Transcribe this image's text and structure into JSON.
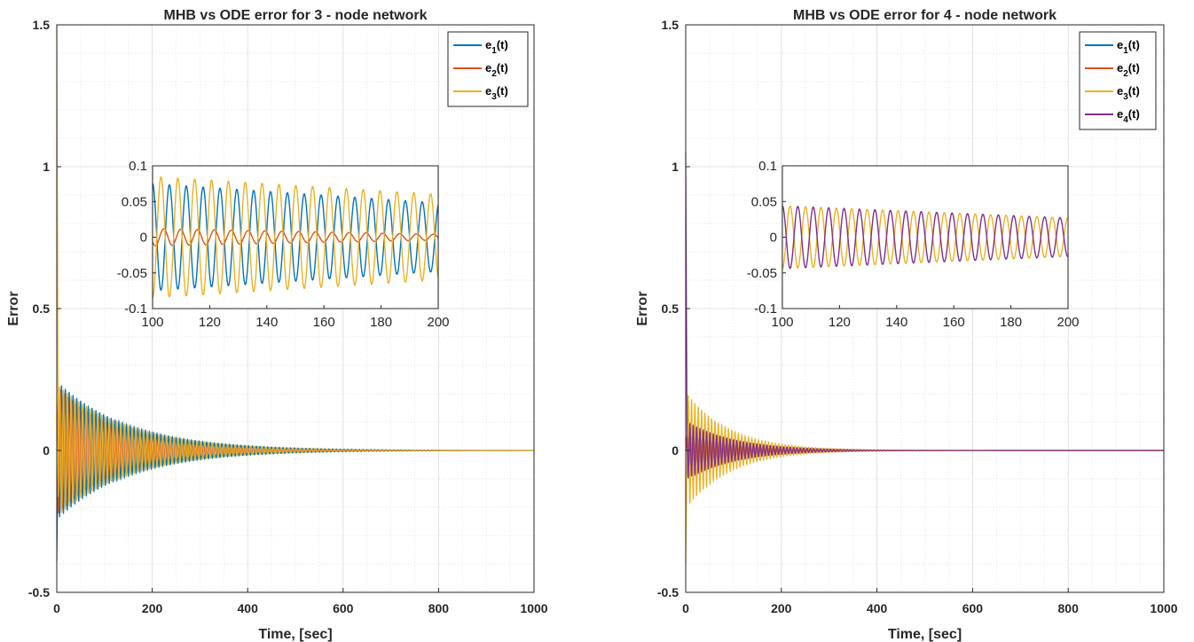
{
  "chart_data": [
    {
      "type": "line",
      "title": "MHB vs ODE error for 3 - node network",
      "xlabel": "Time, [sec]",
      "ylabel": "Error",
      "xlim": [
        0,
        1000
      ],
      "ylim": [
        -0.5,
        1.5
      ],
      "xticks": [
        "0",
        "200",
        "400",
        "600",
        "800",
        "1000"
      ],
      "yticks": [
        "-0.5",
        "0",
        "0.5",
        "1",
        "1.5"
      ],
      "grid": true,
      "legend_position": "top-right",
      "series": [
        {
          "name": "e1(t)",
          "label_base": "e",
          "label_sub": "1",
          "label_suffix": "(t)",
          "color": "#0072BD",
          "initial": -0.39,
          "amplitude": 0.24,
          "decay_time": 150,
          "period": 8,
          "phase": 0
        },
        {
          "name": "e2(t)",
          "label_base": "e",
          "label_sub": "2",
          "label_suffix": "(t)",
          "color": "#D95319",
          "initial": 0.0,
          "amplitude": 0.22,
          "decay_time": 120,
          "period": 8,
          "phase": 2.1
        },
        {
          "name": "e3(t)",
          "label_base": "e",
          "label_sub": "3",
          "label_suffix": "(t)",
          "color": "#EDB120",
          "initial": 1.5,
          "amplitude": 0.23,
          "decay_time": 150,
          "period": 8,
          "phase": 3.14
        }
      ],
      "inset": {
        "xlim": [
          100,
          200
        ],
        "ylim": [
          -0.1,
          0.1
        ],
        "xticks": [
          "100",
          "120",
          "140",
          "160",
          "180",
          "200"
        ],
        "yticks": [
          "-0.1",
          "-0.05",
          "0",
          "0.05",
          "0.1"
        ],
        "series": [
          {
            "color": "#0072BD",
            "amp_start": 0.075,
            "amp_end": 0.048,
            "period": 5.9,
            "phase": 0
          },
          {
            "color": "#D95319",
            "amp_start": 0.012,
            "amp_end": 0.004,
            "period": 5.9,
            "phase": 2.1
          },
          {
            "color": "#EDB120",
            "amp_start": 0.085,
            "amp_end": 0.06,
            "period": 5.9,
            "phase": 3.14
          }
        ]
      }
    },
    {
      "type": "line",
      "title": "MHB vs ODE error for 4 - node network",
      "xlabel": "Time, [sec]",
      "ylabel": "Error",
      "xlim": [
        0,
        1000
      ],
      "ylim": [
        -0.5,
        1.5
      ],
      "xticks": [
        "0",
        "200",
        "400",
        "600",
        "800",
        "1000"
      ],
      "yticks": [
        "-0.5",
        "0",
        "0.5",
        "1",
        "1.5"
      ],
      "grid": true,
      "legend_position": "top-right",
      "series": [
        {
          "name": "e1(t)",
          "label_base": "e",
          "label_sub": "1",
          "label_suffix": "(t)",
          "color": "#0072BD",
          "initial": 0.0,
          "amplitude": 0.06,
          "decay_time": 100,
          "period": 7,
          "phase": 0
        },
        {
          "name": "e2(t)",
          "label_base": "e",
          "label_sub": "2",
          "label_suffix": "(t)",
          "color": "#D95319",
          "initial": 0.0,
          "amplitude": 0.06,
          "decay_time": 100,
          "period": 7,
          "phase": 1.6
        },
        {
          "name": "e3(t)",
          "label_base": "e",
          "label_sub": "3",
          "label_suffix": "(t)",
          "color": "#EDB120",
          "initial": -0.4,
          "amplitude": 0.2,
          "decay_time": 90,
          "period": 7,
          "phase": 3.14
        },
        {
          "name": "e4(t)",
          "label_base": "e",
          "label_sub": "4",
          "label_suffix": "(t)",
          "color": "#7E2F8E",
          "initial": 1.05,
          "amplitude": 0.1,
          "decay_time": 100,
          "period": 7,
          "phase": 0
        }
      ],
      "inset": {
        "xlim": [
          100,
          200
        ],
        "ylim": [
          -0.1,
          0.1
        ],
        "xticks": [
          "100",
          "120",
          "140",
          "160",
          "180",
          "200"
        ],
        "yticks": [
          "-0.1",
          "-0.05",
          "0",
          "0.05",
          "0.1"
        ],
        "series": [
          {
            "color": "#EDB120",
            "amp_start": 0.044,
            "amp_end": 0.027,
            "period": 5.4,
            "phase": 3.14
          },
          {
            "color": "#7E2F8E",
            "amp_start": 0.044,
            "amp_end": 0.027,
            "period": 5.4,
            "phase": 0
          }
        ]
      }
    }
  ]
}
